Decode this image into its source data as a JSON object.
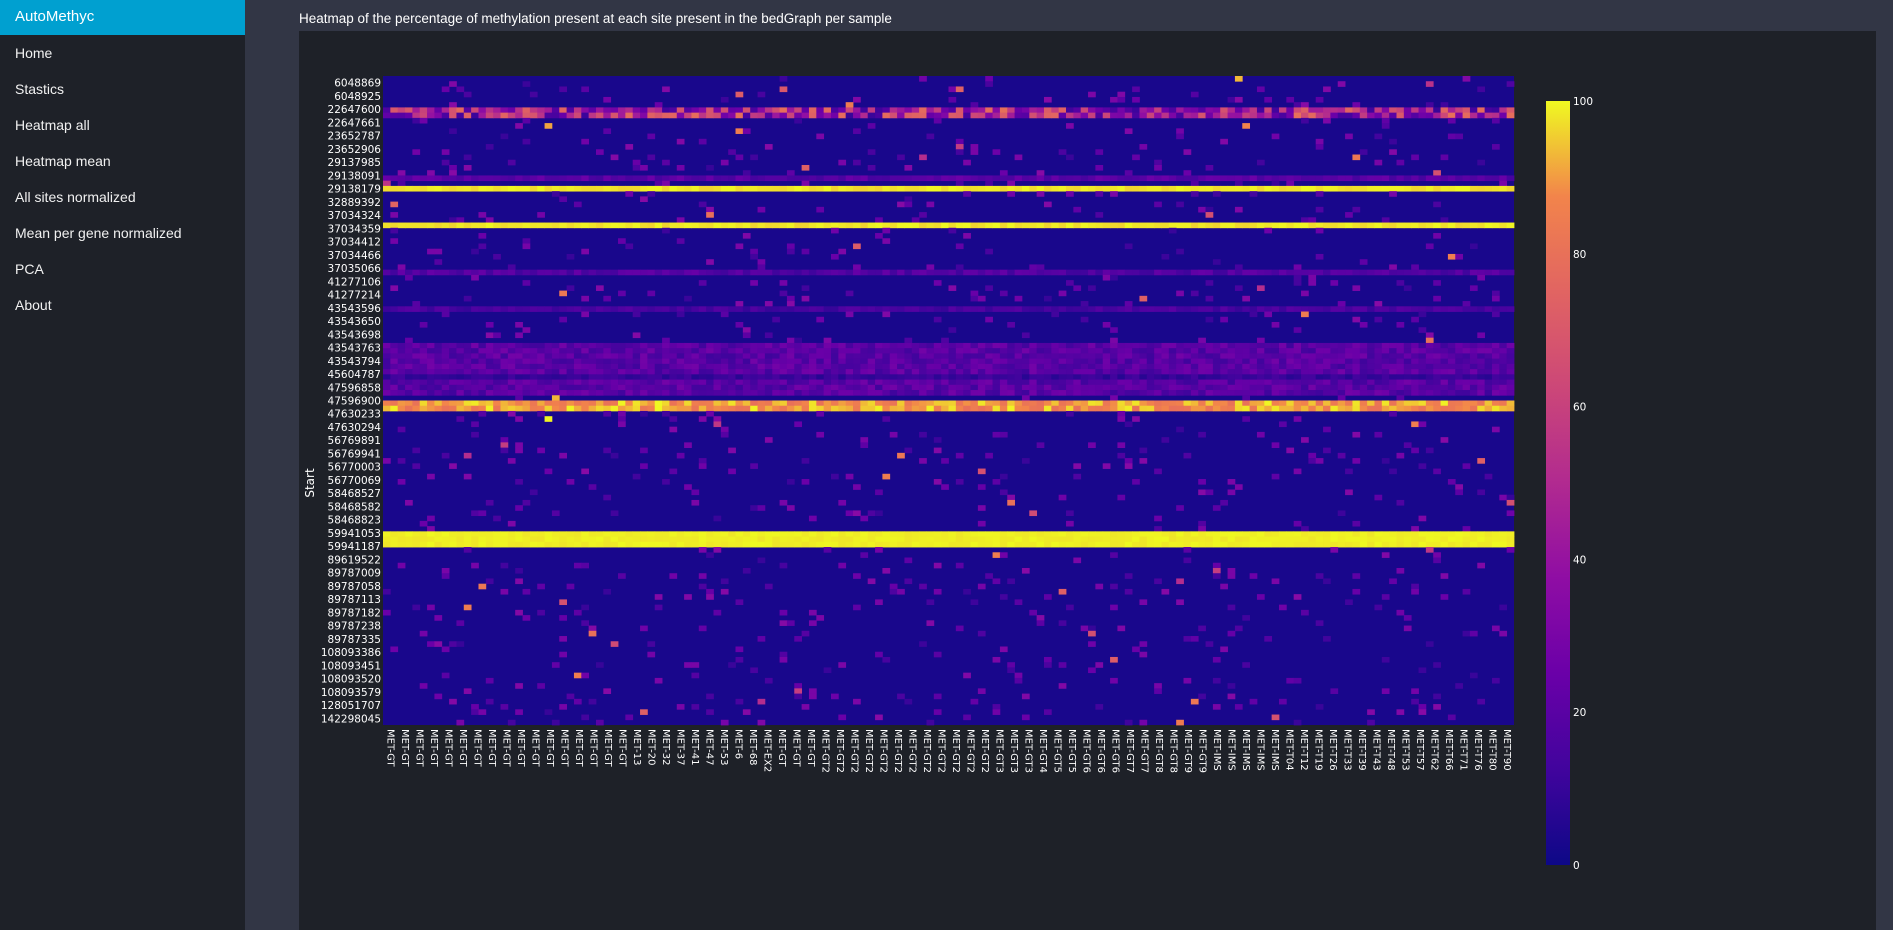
{
  "app": {
    "brand": "AutoMethyc"
  },
  "sidebar": {
    "items": [
      {
        "label": "Home"
      },
      {
        "label": "Stastics"
      },
      {
        "label": "Heatmap all"
      },
      {
        "label": "Heatmap mean"
      },
      {
        "label": "All sites normalized"
      },
      {
        "label": "Mean per gene normalized"
      },
      {
        "label": "PCA"
      },
      {
        "label": "About"
      }
    ]
  },
  "page": {
    "title": "Heatmap of the percentage of methylation present at each site present in the bedGraph per sample"
  },
  "chart_data": {
    "type": "heatmap",
    "title": "",
    "ylabel": "Start",
    "xlabel": "",
    "colorscale": "plasma",
    "colors": {
      "low": "#0d0887",
      "mid": "#cc4778",
      "high": "#f0f921"
    },
    "zlim": [
      0,
      100
    ],
    "colorbar_ticks": [
      0,
      20,
      40,
      60,
      80,
      100
    ],
    "y_tick_labels": [
      "6048869",
      "6048925",
      "22647600",
      "22647661",
      "23652787",
      "23652906",
      "29137985",
      "29138091",
      "29138179",
      "32889392",
      "37034324",
      "37034359",
      "37034412",
      "37034466",
      "37035066",
      "41277106",
      "41277214",
      "43543596",
      "43543650",
      "43543698",
      "43543763",
      "43543794",
      "45604787",
      "47596858",
      "47596900",
      "47630233",
      "47630294",
      "56769891",
      "56769941",
      "56770003",
      "56770069",
      "58468527",
      "58468582",
      "58468823",
      "59941053",
      "59941187",
      "89619522",
      "89787009",
      "89787058",
      "89787113",
      "89787182",
      "89787238",
      "89787335",
      "108093386",
      "108093451",
      "108093520",
      "108093579",
      "128051707",
      "142298045"
    ],
    "x_tick_labels": [
      "MET-GT",
      "MET-GT",
      "MET-GT",
      "MET-GT",
      "MET-GT",
      "MET-GT",
      "MET-GT",
      "MET-GT",
      "MET-GT",
      "MET-GT",
      "MET-GT",
      "MET-GT",
      "MET-GT",
      "MET-GT",
      "MET-GT",
      "MET-GT",
      "MET-GT",
      "MET-13",
      "MET-20",
      "MET-32",
      "MET-37",
      "MET-41",
      "MET-47",
      "MET-53",
      "MET-6",
      "MET-68",
      "MET-EX2",
      "MET-GT",
      "MET-GT",
      "MET-GT",
      "MET-GT2",
      "MET-GT2",
      "MET-GT2",
      "MET-GT2",
      "MET-GT2",
      "MET-GT2",
      "MET-GT2",
      "MET-GT2",
      "MET-GT2",
      "MET-GT2",
      "MET-GT2",
      "MET-GT2",
      "MET-GT3",
      "MET-GT3",
      "MET-GT3",
      "MET-GT4",
      "MET-GT5",
      "MET-GT5",
      "MET-GT6",
      "MET-GT6",
      "MET-GT6",
      "MET-GT7",
      "MET-GT7",
      "MET-GT8",
      "MET-GT8",
      "MET-GT9",
      "MET-GT9",
      "MET-IMS",
      "MET-IMS",
      "MET-IMS",
      "MET-IMS",
      "MET-IMS",
      "MET-T04",
      "MET-T12",
      "MET-T19",
      "MET-T26",
      "MET-T33",
      "MET-T39",
      "MET-T43",
      "MET-T48",
      "MET-T53",
      "MET-T57",
      "MET-T62",
      "MET-T66",
      "MET-T71",
      "MET-T76",
      "MET-T80",
      "MET-T90"
    ],
    "num_samples": 154,
    "row_profiles": [
      {
        "rows": [
          0,
          5
        ],
        "base": 3,
        "noise": 2
      },
      {
        "rows": [
          6,
          7
        ],
        "base": 45,
        "noise": 35
      },
      {
        "rows": [
          8,
          18
        ],
        "base": 3,
        "noise": 2
      },
      {
        "rows": [
          19,
          19
        ],
        "base": 20,
        "noise": 6
      },
      {
        "rows": [
          20,
          20
        ],
        "base": 4,
        "noise": 2
      },
      {
        "rows": [
          21,
          21
        ],
        "base": 98,
        "noise": 2
      },
      {
        "rows": [
          22,
          27
        ],
        "base": 3,
        "noise": 2
      },
      {
        "rows": [
          28,
          28
        ],
        "base": 98,
        "noise": 2
      },
      {
        "rows": [
          29,
          36
        ],
        "base": 3,
        "noise": 2
      },
      {
        "rows": [
          37,
          37
        ],
        "base": 18,
        "noise": 6
      },
      {
        "rows": [
          38,
          43
        ],
        "base": 4,
        "noise": 3
      },
      {
        "rows": [
          44,
          44
        ],
        "base": 15,
        "noise": 5
      },
      {
        "rows": [
          45,
          50
        ],
        "base": 4,
        "noise": 3
      },
      {
        "rows": [
          51,
          56
        ],
        "base": 20,
        "noise": 8
      },
      {
        "rows": [
          57,
          57
        ],
        "base": 10,
        "noise": 4
      },
      {
        "rows": [
          58,
          60
        ],
        "base": 20,
        "noise": 8
      },
      {
        "rows": [
          61,
          61
        ],
        "base": 4,
        "noise": 2
      },
      {
        "rows": [
          62,
          63
        ],
        "base": 90,
        "noise": 10
      },
      {
        "rows": [
          64,
          86
        ],
        "base": 3,
        "noise": 2
      },
      {
        "rows": [
          87,
          89
        ],
        "base": 99,
        "noise": 1
      },
      {
        "rows": [
          90,
          123
        ],
        "base": 3,
        "noise": 2
      }
    ],
    "num_rows": 124
  }
}
